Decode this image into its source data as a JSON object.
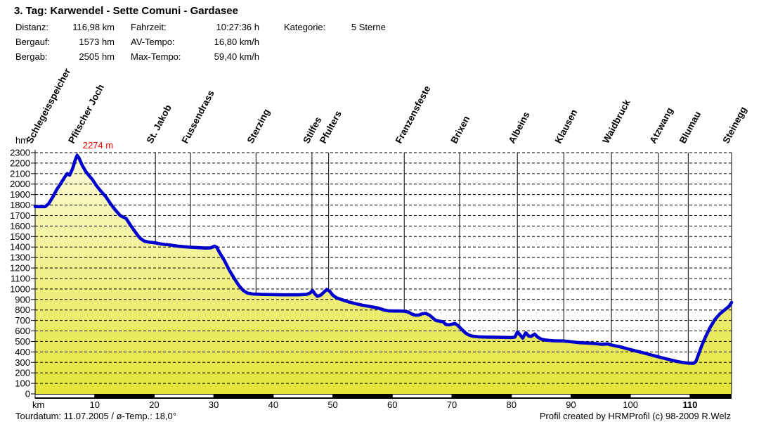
{
  "header": {
    "title": "3. Tag: Karwendel - Sette Comuni - Gardasee",
    "stats": [
      {
        "label": "Distanz:",
        "value": "116,98 km"
      },
      {
        "label": "Bergauf:",
        "value": "1573 hm"
      },
      {
        "label": "Bergab:",
        "value": "2505 hm"
      },
      {
        "label": "Fahrzeit:",
        "value": "10:27:36 h"
      },
      {
        "label": "AV-Tempo:",
        "value": "16,80 km/h"
      },
      {
        "label": "Max-Tempo:",
        "value": "59,40 km/h"
      },
      {
        "label": "Kategorie:",
        "value": "5 Sterne"
      }
    ]
  },
  "footer": {
    "left": "Tourdatum: 11.07.2005  /  ø-Temp.: 18,0°",
    "right": "Profil created by HRMProfil (c) 98-2009 R.Welz"
  },
  "chart_data": {
    "type": "area",
    "title": "3. Tag: Karwendel - Sette Comuni - Gardasee",
    "x_unit_label": "km",
    "y_unit_label": "hm",
    "xlim": [
      0,
      116.98
    ],
    "ylim": [
      0,
      2300
    ],
    "x_ticks": [
      10,
      20,
      30,
      40,
      50,
      60,
      70,
      80,
      90,
      100,
      110
    ],
    "x_tick_bold": 110,
    "y_ticks": [
      0,
      100,
      200,
      300,
      400,
      500,
      600,
      700,
      800,
      900,
      1000,
      1100,
      1200,
      1300,
      1400,
      1500,
      1600,
      1700,
      1800,
      1900,
      2000,
      2100,
      2200,
      2300
    ],
    "grid": "horizontal-dashed-with-vertical-waypoint-lines",
    "legend": "none",
    "line_color": "#0000CD",
    "area_fill_top": "#FDFDDE",
    "area_fill_bottom": "#E4E438",
    "annotation_color": "#FF0000",
    "distance_bar": {
      "interval_km": 10,
      "colors": [
        "#FFFFFF",
        "#000000"
      ]
    },
    "peak_annotation": {
      "text": "2274 m",
      "km": 7.05,
      "hm": 2274
    },
    "waypoints": [
      {
        "name": "Schlegeisspeicher",
        "km": 0
      },
      {
        "name": "Pfitscher Joch",
        "km": 7.05
      },
      {
        "name": "St. Jakob",
        "km": 20.2
      },
      {
        "name": "Fussendrass",
        "km": 26.1
      },
      {
        "name": "Sterzing",
        "km": 37.1
      },
      {
        "name": "Stilfes",
        "km": 46.5
      },
      {
        "name": "Pfulters",
        "km": 49.3
      },
      {
        "name": "Franzensfeste",
        "km": 62.0
      },
      {
        "name": "Brixen",
        "km": 71.3
      },
      {
        "name": "Albeins",
        "km": 81.0
      },
      {
        "name": "Klausen",
        "km": 88.8
      },
      {
        "name": "Waidbruck",
        "km": 96.8
      },
      {
        "name": "Atzwang",
        "km": 104.7
      },
      {
        "name": "Blumau",
        "km": 109.7
      },
      {
        "name": "Steinegg",
        "km": 117.0
      }
    ],
    "profile_km_hm": [
      [
        0,
        1785
      ],
      [
        1.7,
        1785
      ],
      [
        2.3,
        1815
      ],
      [
        3.0,
        1880
      ],
      [
        3.6,
        1945
      ],
      [
        4.3,
        2005
      ],
      [
        5.0,
        2070
      ],
      [
        5.4,
        2100
      ],
      [
        5.8,
        2085
      ],
      [
        6.3,
        2150
      ],
      [
        6.7,
        2225
      ],
      [
        7.05,
        2274
      ],
      [
        7.4,
        2245
      ],
      [
        7.9,
        2180
      ],
      [
        8.5,
        2120
      ],
      [
        9.0,
        2085
      ],
      [
        9.6,
        2045
      ],
      [
        10.3,
        1985
      ],
      [
        11.0,
        1935
      ],
      [
        11.9,
        1878
      ],
      [
        12.6,
        1818
      ],
      [
        13.4,
        1758
      ],
      [
        14.3,
        1700
      ],
      [
        15.3,
        1672
      ],
      [
        16.0,
        1610
      ],
      [
        16.8,
        1545
      ],
      [
        17.6,
        1485
      ],
      [
        18.3,
        1458
      ],
      [
        19.0,
        1448
      ],
      [
        20.2,
        1440
      ],
      [
        21.2,
        1428
      ],
      [
        22.8,
        1418
      ],
      [
        24.0,
        1408
      ],
      [
        25.2,
        1402
      ],
      [
        26.1,
        1398
      ],
      [
        27.3,
        1394
      ],
      [
        28.6,
        1390
      ],
      [
        29.5,
        1392
      ],
      [
        30.1,
        1408
      ],
      [
        30.5,
        1398
      ],
      [
        31.0,
        1345
      ],
      [
        31.8,
        1270
      ],
      [
        32.6,
        1180
      ],
      [
        33.4,
        1105
      ],
      [
        34.2,
        1035
      ],
      [
        34.9,
        988
      ],
      [
        35.6,
        962
      ],
      [
        36.5,
        952
      ],
      [
        38.0,
        948
      ],
      [
        40.0,
        946
      ],
      [
        42.0,
        944
      ],
      [
        44.0,
        944
      ],
      [
        45.6,
        948
      ],
      [
        46.2,
        962
      ],
      [
        46.6,
        986
      ],
      [
        47.0,
        952
      ],
      [
        47.4,
        930
      ],
      [
        48.0,
        942
      ],
      [
        48.6,
        975
      ],
      [
        49.0,
        996
      ],
      [
        49.5,
        978
      ],
      [
        50.0,
        940
      ],
      [
        50.6,
        916
      ],
      [
        51.5,
        898
      ],
      [
        52.6,
        878
      ],
      [
        53.8,
        860
      ],
      [
        55.0,
        845
      ],
      [
        56.3,
        832
      ],
      [
        57.6,
        818
      ],
      [
        58.6,
        800
      ],
      [
        59.3,
        792
      ],
      [
        60.2,
        790
      ],
      [
        61.2,
        790
      ],
      [
        62.0,
        788
      ],
      [
        62.7,
        780
      ],
      [
        63.3,
        760
      ],
      [
        63.9,
        750
      ],
      [
        64.5,
        752
      ],
      [
        65.0,
        764
      ],
      [
        65.6,
        768
      ],
      [
        66.2,
        752
      ],
      [
        66.7,
        728
      ],
      [
        67.3,
        700
      ],
      [
        68.0,
        692
      ],
      [
        68.5,
        688
      ],
      [
        69.0,
        662
      ],
      [
        69.5,
        658
      ],
      [
        70.0,
        664
      ],
      [
        70.5,
        672
      ],
      [
        71.0,
        652
      ],
      [
        71.6,
        618
      ],
      [
        72.2,
        585
      ],
      [
        72.8,
        562
      ],
      [
        73.5,
        550
      ],
      [
        74.5,
        544
      ],
      [
        76.0,
        541
      ],
      [
        78.0,
        539
      ],
      [
        80.0,
        537
      ],
      [
        80.6,
        542
      ],
      [
        81.0,
        590
      ],
      [
        81.5,
        560
      ],
      [
        81.9,
        532
      ],
      [
        82.4,
        582
      ],
      [
        82.9,
        552
      ],
      [
        83.3,
        548
      ],
      [
        83.9,
        570
      ],
      [
        84.4,
        542
      ],
      [
        85.0,
        522
      ],
      [
        85.8,
        512
      ],
      [
        87.0,
        507
      ],
      [
        88.0,
        505
      ],
      [
        88.8,
        504
      ],
      [
        90.0,
        497
      ],
      [
        91.3,
        489
      ],
      [
        92.8,
        484
      ],
      [
        94.2,
        479
      ],
      [
        95.3,
        472
      ],
      [
        96.1,
        477
      ],
      [
        96.8,
        466
      ],
      [
        97.6,
        456
      ],
      [
        98.6,
        444
      ],
      [
        99.6,
        428
      ],
      [
        100.7,
        412
      ],
      [
        101.8,
        396
      ],
      [
        102.9,
        380
      ],
      [
        103.9,
        365
      ],
      [
        104.7,
        353
      ],
      [
        105.6,
        340
      ],
      [
        106.6,
        325
      ],
      [
        107.6,
        312
      ],
      [
        108.6,
        301
      ],
      [
        109.4,
        295
      ],
      [
        110.2,
        291
      ],
      [
        110.7,
        293
      ],
      [
        111.0,
        310
      ],
      [
        111.4,
        370
      ],
      [
        111.9,
        450
      ],
      [
        112.5,
        530
      ],
      [
        113.3,
        625
      ],
      [
        114.2,
        710
      ],
      [
        115.0,
        762
      ],
      [
        115.8,
        800
      ],
      [
        116.3,
        822
      ],
      [
        116.6,
        838
      ],
      [
        116.98,
        872
      ]
    ]
  }
}
